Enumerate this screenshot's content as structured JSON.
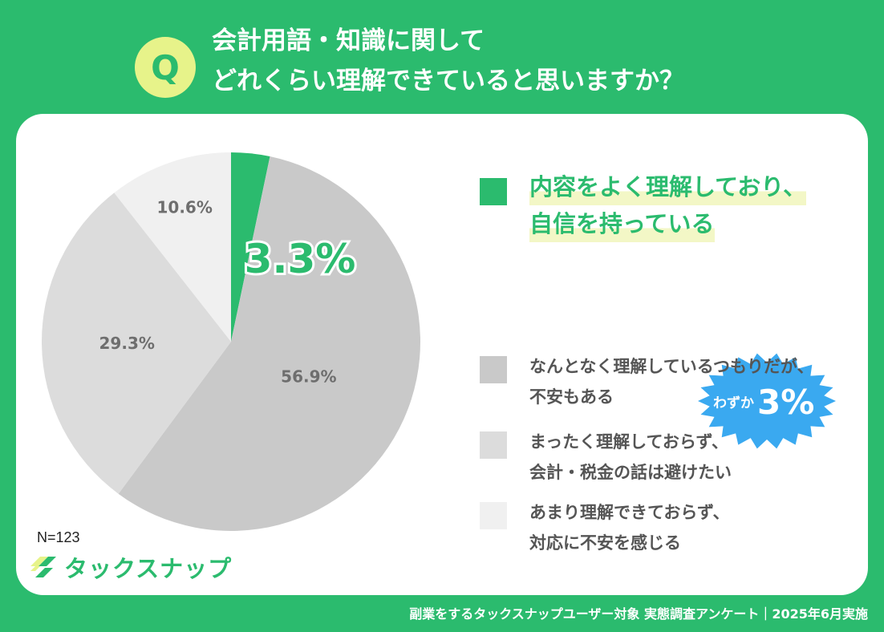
{
  "header": {
    "badge": "Q",
    "title_line1": "会計用語・知識に関して",
    "title_line2": "どれくらい理解できていると思いますか？"
  },
  "chart_data": {
    "type": "pie",
    "categories": [
      "内容をよく理解しており、自信を持っている",
      "なんとなく理解しているつもりだが、不安もある",
      "まったく理解しておらず、会計・税金の話は避けたい",
      "あまり理解できておらず、対応に不安を感じる"
    ],
    "values": [
      3.3,
      56.9,
      29.3,
      10.6
    ],
    "value_labels": [
      "3.3%",
      "56.9%",
      "29.3%",
      "10.6%"
    ],
    "colors": [
      "#2bbb6e",
      "#c9c9c9",
      "#dcdcdc",
      "#f0f0f0"
    ],
    "start_angle": "12 o'clock",
    "direction": "clockwise",
    "legend_position": "right"
  },
  "legend": {
    "main_line1": "内容をよく理解しており、",
    "main_line2": "自信を持っている",
    "item2_line1": "なんとなく理解しているつもりだが、",
    "item2_line2": "不安もある",
    "item3_line1": "まったく理解しておらず、",
    "item3_line2": "会計・税金の話は避けたい",
    "item4_line1": "あまり理解できておらず、",
    "item4_line2": "対応に不安を感じる"
  },
  "callout": {
    "prefix": "わずか",
    "value": "3%",
    "color": "#3aa9f0"
  },
  "sample_size": "N=123",
  "logo": {
    "name": "タックスナップ",
    "icon": "taxnap-logo-icon"
  },
  "footer": "副業をするタックスナップユーザー対象 実態調査アンケート｜2025年6月実施"
}
